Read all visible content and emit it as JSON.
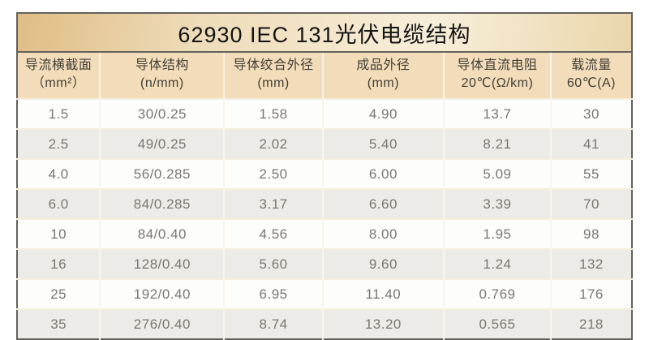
{
  "title": "62930 IEC 131光伏电缆结构",
  "colors": {
    "title_gradient_left": "#e0bd86",
    "title_gradient_mid": "#f7eed9",
    "title_gradient_right": "#ead6ab",
    "header_bg": "#f3dcb9",
    "row_bg": "#fdfdfc",
    "row_alt_bg": "#edebe7",
    "outer_border": "#63625c",
    "divider_light": "#faf5ec",
    "header_text": "#403e36",
    "cell_text": "#797771"
  },
  "chart_data": {
    "type": "table",
    "title": "62930 IEC 131光伏电缆结构",
    "columns": [
      {
        "line1": "导流横截面",
        "line2": "（mm²）"
      },
      {
        "line1": "导体结构",
        "line2": "(n/mm)"
      },
      {
        "line1": "导体绞合外径",
        "line2": "(mm)"
      },
      {
        "line1": "成品外径",
        "line2": "(mm)"
      },
      {
        "line1": "导体直流电阻",
        "line2": "20℃(Ω/km)"
      },
      {
        "line1": "载流量",
        "line2": "60℃(A)"
      }
    ],
    "rows": [
      [
        "1.5",
        "30/0.25",
        "1.58",
        "4.90",
        "13.7",
        "30"
      ],
      [
        "2.5",
        "49/0.25",
        "2.02",
        "5.40",
        "8.21",
        "41"
      ],
      [
        "4.0",
        "56/0.285",
        "2.50",
        "6.00",
        "5.09",
        "55"
      ],
      [
        "6.0",
        "84/0.285",
        "3.17",
        "6.60",
        "3.39",
        "70"
      ],
      [
        "10",
        "84/0.40",
        "4.56",
        "8.00",
        "1.95",
        "98"
      ],
      [
        "16",
        "128/0.40",
        "5.60",
        "9.60",
        "1.24",
        "132"
      ],
      [
        "25",
        "192/0.40",
        "6.95",
        "11.40",
        "0.769",
        "176"
      ],
      [
        "35",
        "276/0.40",
        "8.74",
        "13.20",
        "0.565",
        "218"
      ]
    ],
    "layout": {
      "column_width_percents": [
        13.5,
        20.2,
        16.0,
        19.7,
        17.4,
        13.2
      ],
      "alternating_rows": true
    }
  }
}
